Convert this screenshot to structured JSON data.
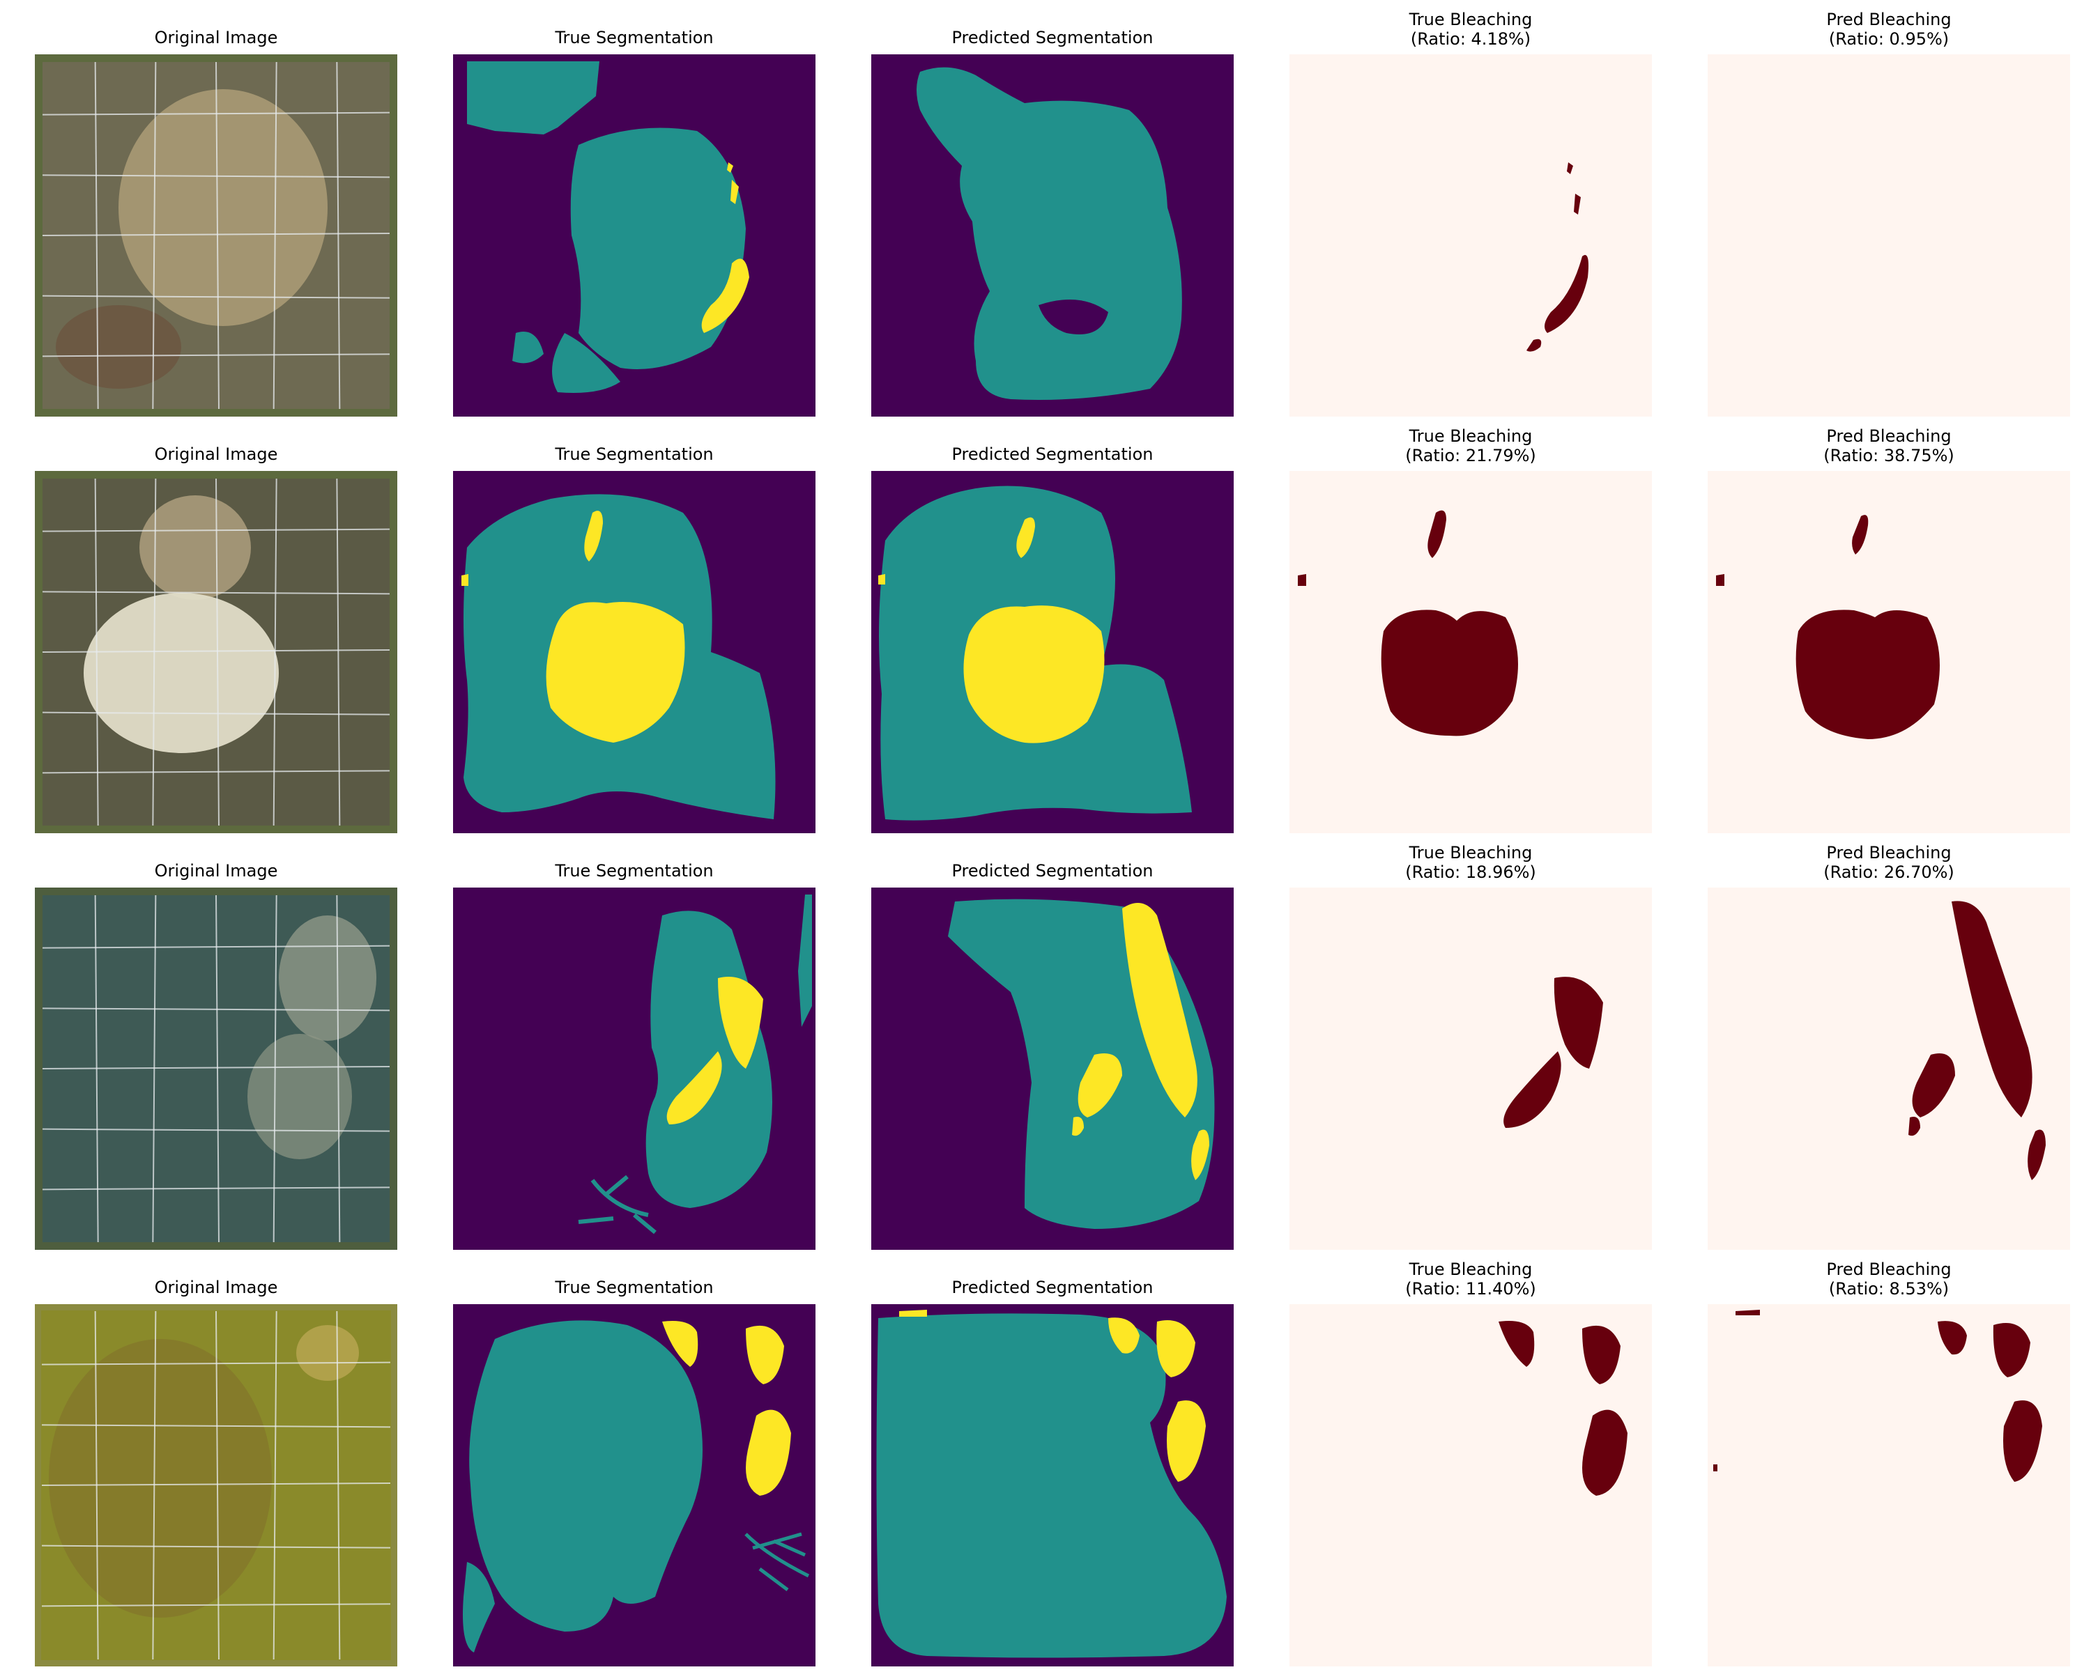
{
  "figure": {
    "rows": [
      {
        "panels": [
          {
            "kind": "photo",
            "title": "Original Image",
            "tint": "#6e6a52"
          },
          {
            "kind": "true-seg",
            "title": "True Segmentation"
          },
          {
            "kind": "pred-seg",
            "title": "Predicted Segmentation"
          },
          {
            "kind": "true-bleach",
            "title": "True Bleaching",
            "ratio_label": "(Ratio: 4.18%)",
            "ratio": 4.18
          },
          {
            "kind": "pred-bleach",
            "title": "Pred Bleaching",
            "ratio_label": "(Ratio: 0.95%)",
            "ratio": 0.95
          }
        ]
      },
      {
        "panels": [
          {
            "kind": "photo",
            "title": "Original Image",
            "tint": "#5b5a45"
          },
          {
            "kind": "true-seg",
            "title": "True Segmentation"
          },
          {
            "kind": "pred-seg",
            "title": "Predicted Segmentation"
          },
          {
            "kind": "true-bleach",
            "title": "True Bleaching",
            "ratio_label": "(Ratio: 21.79%)",
            "ratio": 21.79
          },
          {
            "kind": "pred-bleach",
            "title": "Pred Bleaching",
            "ratio_label": "(Ratio: 38.75%)",
            "ratio": 38.75
          }
        ]
      },
      {
        "panels": [
          {
            "kind": "photo",
            "title": "Original Image",
            "tint": "#3e5a55"
          },
          {
            "kind": "true-seg",
            "title": "True Segmentation"
          },
          {
            "kind": "pred-seg",
            "title": "Predicted Segmentation"
          },
          {
            "kind": "true-bleach",
            "title": "True Bleaching",
            "ratio_label": "(Ratio: 18.96%)",
            "ratio": 18.96
          },
          {
            "kind": "pred-bleach",
            "title": "Pred Bleaching",
            "ratio_label": "(Ratio: 26.70%)",
            "ratio": 26.7
          }
        ]
      },
      {
        "panels": [
          {
            "kind": "photo",
            "title": "Original Image",
            "tint": "#8a8a2a"
          },
          {
            "kind": "true-seg",
            "title": "True Segmentation"
          },
          {
            "kind": "pred-seg",
            "title": "Predicted Segmentation"
          },
          {
            "kind": "true-bleach",
            "title": "True Bleaching",
            "ratio_label": "(Ratio: 11.40%)",
            "ratio": 11.4
          },
          {
            "kind": "pred-bleach",
            "title": "Pred Bleaching",
            "ratio_label": "(Ratio: 8.53%)",
            "ratio": 8.53
          }
        ]
      }
    ]
  },
  "colors": {
    "seg_background": "#440154",
    "seg_coral": "#21918c",
    "seg_bleached": "#fde725",
    "bleach_background": "#fff5f0",
    "bleach_mask": "#67000d",
    "photo_frame": "#5d6a3e",
    "photo_grid": "#e8ecef"
  }
}
